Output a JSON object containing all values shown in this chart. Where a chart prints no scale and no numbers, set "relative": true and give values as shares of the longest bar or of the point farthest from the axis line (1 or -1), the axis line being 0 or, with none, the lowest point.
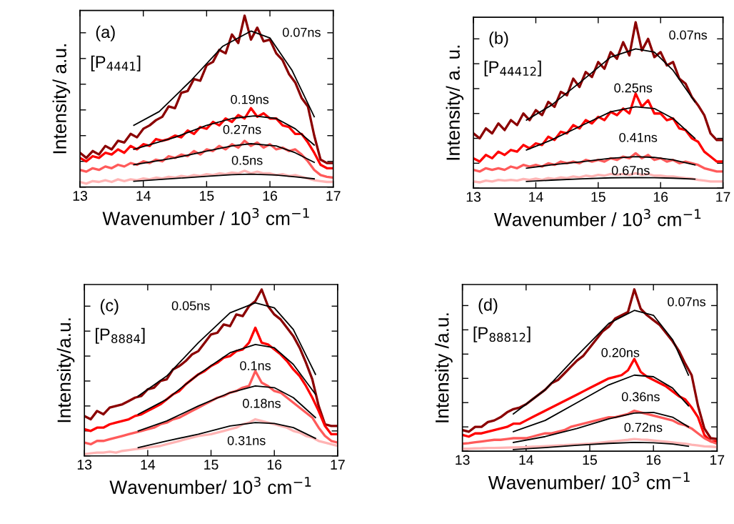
{
  "chart_data": [
    {
      "type": "line",
      "relative": true,
      "tick_labels": "x",
      "xlabel": "Wavenumber / 10$^{3}$ cm$^{−1}$",
      "ylabel": "Intensity/ a.u.",
      "xlim": [
        13,
        17
      ],
      "xticks": [
        13,
        14,
        15,
        16,
        17
      ],
      "x": [
        13.0,
        13.1,
        13.2,
        13.3,
        13.4,
        13.5,
        13.6,
        13.7,
        13.8,
        13.9,
        14.0,
        14.1,
        14.2,
        14.3,
        14.4,
        14.5,
        14.6,
        14.7,
        14.8,
        14.9,
        15.0,
        15.1,
        15.2,
        15.3,
        15.4,
        15.5,
        15.6,
        15.7,
        15.8,
        15.9,
        16.0,
        16.1,
        16.2,
        16.3,
        16.4,
        16.5,
        16.6,
        16.7,
        16.8,
        16.9,
        17.0
      ],
      "series": [
        {
          "color": "#8b0000",
          "values": [
            0.2,
            0.17,
            0.21,
            0.19,
            0.24,
            0.22,
            0.27,
            0.26,
            0.31,
            0.29,
            0.34,
            0.36,
            0.39,
            0.41,
            0.47,
            0.46,
            0.55,
            0.56,
            0.63,
            0.62,
            0.71,
            0.73,
            0.8,
            0.78,
            0.89,
            0.84,
            1.0,
            0.86,
            0.93,
            0.85,
            0.86,
            0.78,
            0.74,
            0.66,
            0.61,
            0.52,
            0.47,
            0.3,
            0.16,
            0.14,
            0.14
          ]
        },
        {
          "color": "#ff0000",
          "values": [
            0.17,
            0.15,
            0.18,
            0.17,
            0.2,
            0.19,
            0.22,
            0.2,
            0.24,
            0.22,
            0.25,
            0.24,
            0.28,
            0.27,
            0.28,
            0.3,
            0.29,
            0.33,
            0.31,
            0.35,
            0.34,
            0.38,
            0.36,
            0.4,
            0.38,
            0.42,
            0.4,
            0.46,
            0.41,
            0.43,
            0.4,
            0.4,
            0.36,
            0.35,
            0.31,
            0.31,
            0.26,
            0.2,
            0.13,
            0.11,
            0.11
          ]
        },
        {
          "color": "#ff5a5a",
          "values": [
            0.1,
            0.09,
            0.11,
            0.1,
            0.12,
            0.11,
            0.13,
            0.12,
            0.14,
            0.13,
            0.15,
            0.14,
            0.16,
            0.15,
            0.18,
            0.17,
            0.19,
            0.18,
            0.21,
            0.19,
            0.22,
            0.21,
            0.24,
            0.22,
            0.25,
            0.23,
            0.27,
            0.24,
            0.26,
            0.23,
            0.25,
            0.22,
            0.23,
            0.21,
            0.22,
            0.19,
            0.15,
            0.1,
            0.07,
            0.06,
            0.055
          ]
        },
        {
          "color": "#ffb4b4",
          "values": [
            0.03,
            0.02,
            0.035,
            0.03,
            0.04,
            0.03,
            0.045,
            0.035,
            0.045,
            0.04,
            0.05,
            0.045,
            0.055,
            0.05,
            0.06,
            0.055,
            0.065,
            0.06,
            0.07,
            0.065,
            0.075,
            0.07,
            0.08,
            0.075,
            0.085,
            0.08,
            0.095,
            0.08,
            0.09,
            0.08,
            0.08,
            0.07,
            0.075,
            0.065,
            0.07,
            0.06,
            0.05,
            0.04,
            0.035,
            0.03,
            0.03
          ]
        },
        {
          "color": "#000000",
          "x": [
            13.85,
            14.25,
            14.75,
            15.25,
            15.7,
            16.0,
            16.35,
            16.7
          ],
          "values": [
            0.36,
            0.44,
            0.62,
            0.82,
            0.91,
            0.87,
            0.68,
            0.41
          ]
        },
        {
          "color": "#000000",
          "x": [
            13.85,
            14.5,
            15.0,
            15.4,
            15.75,
            16.1,
            16.4,
            16.7
          ],
          "values": [
            0.22,
            0.29,
            0.36,
            0.4,
            0.415,
            0.4,
            0.34,
            0.245
          ]
        },
        {
          "color": "#000000",
          "x": [
            13.85,
            14.5,
            15.0,
            15.4,
            15.7,
            16.1,
            16.4,
            16.7
          ],
          "values": [
            0.13,
            0.17,
            0.21,
            0.24,
            0.253,
            0.24,
            0.2,
            0.144
          ]
        },
        {
          "color": "#000000",
          "x": [
            13.85,
            14.5,
            15.0,
            15.4,
            15.7,
            16.1,
            16.4,
            16.7
          ],
          "values": [
            0.034,
            0.05,
            0.063,
            0.072,
            0.075,
            0.07,
            0.06,
            0.048
          ]
        }
      ],
      "annotations": [
        "(a)",
        "[P$_{4441}$]",
        "0.07ns",
        "0.19ns",
        "0.27ns",
        "0.5ns"
      ]
    },
    {
      "type": "line",
      "relative": true,
      "tick_labels": "x",
      "xlabel": "Wavenumber / 10$^{3}$ cm$^{−1}$",
      "ylabel": "Intensity/ a. u.",
      "xlim": [
        13,
        17
      ],
      "xticks": [
        13,
        14,
        15,
        16,
        17
      ],
      "x": [
        13.0,
        13.1,
        13.2,
        13.3,
        13.4,
        13.5,
        13.6,
        13.7,
        13.8,
        13.9,
        14.0,
        14.1,
        14.2,
        14.3,
        14.4,
        14.5,
        14.6,
        14.7,
        14.8,
        14.9,
        15.0,
        15.1,
        15.2,
        15.3,
        15.4,
        15.5,
        15.6,
        15.7,
        15.8,
        15.9,
        16.0,
        16.1,
        16.2,
        16.3,
        16.4,
        16.5,
        16.6,
        16.7,
        16.8,
        16.9,
        17.0
      ],
      "series": [
        {
          "color": "#8b0000",
          "values": [
            0.33,
            0.3,
            0.36,
            0.33,
            0.39,
            0.35,
            0.41,
            0.38,
            0.45,
            0.41,
            0.47,
            0.44,
            0.52,
            0.49,
            0.58,
            0.56,
            0.66,
            0.61,
            0.7,
            0.67,
            0.76,
            0.72,
            0.82,
            0.78,
            0.88,
            0.8,
            1.0,
            0.83,
            0.9,
            0.79,
            0.82,
            0.74,
            0.76,
            0.66,
            0.63,
            0.55,
            0.5,
            0.44,
            0.33,
            0.29,
            0.29
          ]
        },
        {
          "color": "#ff0000",
          "values": [
            0.18,
            0.16,
            0.2,
            0.18,
            0.22,
            0.2,
            0.23,
            0.22,
            0.26,
            0.24,
            0.27,
            0.26,
            0.31,
            0.29,
            0.34,
            0.33,
            0.38,
            0.36,
            0.41,
            0.39,
            0.43,
            0.41,
            0.46,
            0.44,
            0.48,
            0.45,
            0.57,
            0.49,
            0.53,
            0.45,
            0.45,
            0.41,
            0.42,
            0.36,
            0.35,
            0.3,
            0.28,
            0.22,
            0.19,
            0.16,
            0.16
          ]
        },
        {
          "color": "#ff5a5a",
          "values": [
            0.11,
            0.1,
            0.12,
            0.11,
            0.12,
            0.11,
            0.13,
            0.12,
            0.14,
            0.13,
            0.14,
            0.13,
            0.15,
            0.14,
            0.16,
            0.15,
            0.16,
            0.15,
            0.17,
            0.16,
            0.17,
            0.16,
            0.18,
            0.17,
            0.19,
            0.18,
            0.21,
            0.18,
            0.2,
            0.17,
            0.18,
            0.16,
            0.17,
            0.15,
            0.16,
            0.15,
            0.14,
            0.12,
            0.11,
            0.1,
            0.1
          ]
        },
        {
          "color": "#ffb4b4",
          "values": [
            0.04,
            0.035,
            0.045,
            0.04,
            0.05,
            0.045,
            0.05,
            0.045,
            0.055,
            0.05,
            0.057,
            0.05,
            0.06,
            0.055,
            0.065,
            0.06,
            0.07,
            0.065,
            0.075,
            0.07,
            0.08,
            0.075,
            0.085,
            0.08,
            0.085,
            0.08,
            0.09,
            0.08,
            0.085,
            0.075,
            0.075,
            0.07,
            0.07,
            0.065,
            0.06,
            0.057,
            0.05,
            0.045,
            0.04,
            0.04,
            0.04
          ]
        },
        {
          "color": "#000000",
          "x": [
            13.85,
            14.25,
            14.75,
            15.2,
            15.6,
            15.9,
            16.2,
            16.55
          ],
          "values": [
            0.41,
            0.5,
            0.65,
            0.79,
            0.84,
            0.82,
            0.71,
            0.52
          ]
        },
        {
          "color": "#000000",
          "x": [
            13.85,
            14.25,
            14.75,
            15.2,
            15.6,
            15.9,
            16.2,
            16.55
          ],
          "values": [
            0.23,
            0.29,
            0.38,
            0.46,
            0.49,
            0.48,
            0.42,
            0.3
          ]
        },
        {
          "color": "#000000",
          "x": [
            13.85,
            14.25,
            14.75,
            15.2,
            15.6,
            15.9,
            16.2,
            16.55
          ],
          "values": [
            0.12,
            0.14,
            0.16,
            0.18,
            0.19,
            0.185,
            0.17,
            0.14
          ]
        },
        {
          "color": "#000000",
          "x": [
            13.85,
            14.25,
            14.75,
            15.2,
            15.6,
            15.9,
            16.2,
            16.55
          ],
          "values": [
            0.04,
            0.048,
            0.056,
            0.062,
            0.064,
            0.063,
            0.06,
            0.054
          ]
        }
      ],
      "annotations": [
        "(b)",
        "[P$_{44412}$]",
        "0.07ns",
        "0.25ns",
        "0.41ns",
        "0.67ns"
      ]
    },
    {
      "type": "line",
      "relative": true,
      "tick_labels": "x",
      "xlabel": "Wavenumber/ 10$^{3}$ cm$^{−1}$",
      "ylabel": "Intensity/a.u.",
      "xlim": [
        13,
        17
      ],
      "xticks": [
        13,
        14,
        15,
        16,
        17
      ],
      "x": [
        13.0,
        13.1,
        13.2,
        13.3,
        13.4,
        13.5,
        13.6,
        13.7,
        13.8,
        13.9,
        14.0,
        14.1,
        14.2,
        14.3,
        14.4,
        14.5,
        14.6,
        14.7,
        14.8,
        14.9,
        15.0,
        15.1,
        15.2,
        15.3,
        15.4,
        15.5,
        15.6,
        15.7,
        15.8,
        15.9,
        16.0,
        16.1,
        16.2,
        16.3,
        16.4,
        16.5,
        16.6,
        16.7,
        16.8,
        16.9,
        17.0
      ],
      "series": [
        {
          "color": "#8b0000",
          "values": [
            0.24,
            0.22,
            0.27,
            0.25,
            0.29,
            0.3,
            0.31,
            0.33,
            0.35,
            0.36,
            0.4,
            0.41,
            0.45,
            0.46,
            0.52,
            0.54,
            0.57,
            0.61,
            0.63,
            0.68,
            0.73,
            0.74,
            0.79,
            0.78,
            0.85,
            0.84,
            0.9,
            0.93,
            1.0,
            0.9,
            0.85,
            0.82,
            0.77,
            0.72,
            0.65,
            0.56,
            0.46,
            0.3,
            0.19,
            0.18,
            0.18
          ]
        },
        {
          "color": "#ff0000",
          "values": [
            0.16,
            0.15,
            0.17,
            0.17,
            0.19,
            0.2,
            0.21,
            0.22,
            0.24,
            0.25,
            0.27,
            0.29,
            0.31,
            0.34,
            0.37,
            0.39,
            0.43,
            0.46,
            0.49,
            0.51,
            0.54,
            0.56,
            0.59,
            0.6,
            0.63,
            0.64,
            0.68,
            0.77,
            0.68,
            0.67,
            0.64,
            0.61,
            0.57,
            0.52,
            0.48,
            0.42,
            0.35,
            0.27,
            0.18,
            0.13,
            0.13
          ]
        },
        {
          "color": "#ff5a5a",
          "values": [
            0.08,
            0.07,
            0.09,
            0.09,
            0.1,
            0.11,
            0.12,
            0.13,
            0.14,
            0.15,
            0.16,
            0.17,
            0.19,
            0.2,
            0.22,
            0.23,
            0.25,
            0.27,
            0.29,
            0.31,
            0.33,
            0.35,
            0.36,
            0.38,
            0.39,
            0.41,
            0.42,
            0.51,
            0.44,
            0.42,
            0.39,
            0.38,
            0.35,
            0.32,
            0.29,
            0.26,
            0.23,
            0.17,
            0.12,
            0.09,
            0.08
          ]
        },
        {
          "color": "#ffb4b4",
          "values": [
            0.01,
            0.015,
            0.02,
            0.02,
            0.025,
            0.02,
            0.03,
            0.035,
            0.04,
            0.045,
            0.05,
            0.055,
            0.06,
            0.07,
            0.08,
            0.09,
            0.1,
            0.11,
            0.12,
            0.125,
            0.13,
            0.14,
            0.15,
            0.16,
            0.17,
            0.19,
            0.2,
            0.22,
            0.21,
            0.2,
            0.19,
            0.18,
            0.17,
            0.15,
            0.14,
            0.12,
            0.11,
            0.09,
            0.08,
            0.07,
            0.06
          ]
        },
        {
          "color": "#000000",
          "x": [
            13.85,
            14.3,
            14.8,
            15.3,
            15.7,
            16.0,
            16.3,
            16.65
          ],
          "values": [
            0.36,
            0.48,
            0.68,
            0.86,
            0.92,
            0.89,
            0.76,
            0.49
          ]
        },
        {
          "color": "#000000",
          "x": [
            13.85,
            14.3,
            14.8,
            15.3,
            15.7,
            16.0,
            16.3,
            16.65
          ],
          "values": [
            0.25,
            0.34,
            0.49,
            0.62,
            0.67,
            0.65,
            0.55,
            0.37
          ]
        },
        {
          "color": "#000000",
          "x": [
            13.85,
            14.3,
            14.8,
            15.3,
            15.7,
            16.0,
            16.3,
            16.65
          ],
          "values": [
            0.15,
            0.21,
            0.3,
            0.38,
            0.42,
            0.41,
            0.35,
            0.23
          ]
        },
        {
          "color": "#000000",
          "x": [
            13.85,
            14.3,
            14.8,
            15.3,
            15.7,
            16.0,
            16.3,
            16.65
          ],
          "values": [
            0.05,
            0.09,
            0.13,
            0.18,
            0.2,
            0.195,
            0.17,
            0.105
          ]
        }
      ],
      "annotations": [
        "(c)",
        "[P$_{8884}$]",
        "0.05ns",
        "0.1ns",
        "0.18ns",
        "0.31ns"
      ]
    },
    {
      "type": "line",
      "relative": true,
      "tick_labels": "x",
      "xlabel": "Wavenumber/ 10$^{3}$ cm$^{−1}$",
      "ylabel": "Intensity /a.u.",
      "xlim": [
        13,
        17
      ],
      "xticks": [
        13,
        14,
        15,
        16,
        17
      ],
      "x": [
        13.0,
        13.1,
        13.2,
        13.3,
        13.4,
        13.5,
        13.6,
        13.7,
        13.8,
        13.9,
        14.0,
        14.1,
        14.2,
        14.3,
        14.4,
        14.5,
        14.6,
        14.7,
        14.8,
        14.9,
        15.0,
        15.1,
        15.2,
        15.3,
        15.4,
        15.5,
        15.6,
        15.7,
        15.8,
        15.9,
        16.0,
        16.1,
        16.2,
        16.3,
        16.4,
        16.5,
        16.6,
        16.7,
        16.8,
        16.9,
        17.0
      ],
      "series": [
        {
          "color": "#8b0000",
          "values": [
            0.13,
            0.12,
            0.15,
            0.15,
            0.18,
            0.19,
            0.21,
            0.24,
            0.26,
            0.27,
            0.29,
            0.32,
            0.35,
            0.38,
            0.42,
            0.44,
            0.48,
            0.52,
            0.56,
            0.59,
            0.64,
            0.69,
            0.74,
            0.77,
            0.82,
            0.84,
            0.86,
            1.0,
            0.88,
            0.84,
            0.81,
            0.78,
            0.73,
            0.68,
            0.62,
            0.54,
            0.47,
            0.28,
            0.14,
            0.08,
            0.075
          ]
        },
        {
          "color": "#ff0000",
          "values": [
            0.1,
            0.09,
            0.11,
            0.11,
            0.12,
            0.13,
            0.14,
            0.15,
            0.17,
            0.17,
            0.19,
            0.21,
            0.23,
            0.25,
            0.27,
            0.29,
            0.31,
            0.33,
            0.35,
            0.37,
            0.39,
            0.41,
            0.43,
            0.45,
            0.46,
            0.47,
            0.5,
            0.57,
            0.49,
            0.46,
            0.44,
            0.42,
            0.4,
            0.37,
            0.34,
            0.32,
            0.27,
            0.21,
            0.1,
            0.06,
            0.06
          ]
        },
        {
          "color": "#ff5a5a",
          "values": [
            0.046,
            0.05,
            0.055,
            0.06,
            0.065,
            0.07,
            0.07,
            0.075,
            0.08,
            0.08,
            0.08,
            0.09,
            0.1,
            0.11,
            0.11,
            0.12,
            0.13,
            0.15,
            0.16,
            0.17,
            0.18,
            0.19,
            0.2,
            0.21,
            0.21,
            0.22,
            0.23,
            0.25,
            0.24,
            0.23,
            0.22,
            0.21,
            0.2,
            0.19,
            0.17,
            0.16,
            0.14,
            0.11,
            0.08,
            0.06,
            0.046
          ]
        },
        {
          "color": "#ffb4b4",
          "values": [
            0.015,
            0.015,
            0.017,
            0.018,
            0.02,
            0.02,
            0.021,
            0.022,
            0.023,
            0.024,
            0.025,
            0.027,
            0.029,
            0.031,
            0.033,
            0.035,
            0.037,
            0.04,
            0.042,
            0.044,
            0.046,
            0.05,
            0.054,
            0.058,
            0.062,
            0.066,
            0.07,
            0.075,
            0.072,
            0.07,
            0.066,
            0.062,
            0.058,
            0.054,
            0.05,
            0.046,
            0.04,
            0.035,
            0.03,
            0.028,
            0.025
          ]
        },
        {
          "color": "#000000",
          "x": [
            13.8,
            14.3,
            14.8,
            15.3,
            15.7,
            16.0,
            16.3,
            16.55
          ],
          "values": [
            0.23,
            0.38,
            0.59,
            0.79,
            0.87,
            0.84,
            0.69,
            0.47
          ]
        },
        {
          "color": "#000000",
          "x": [
            13.8,
            14.3,
            14.8,
            15.3,
            15.7,
            16.0,
            16.3,
            16.55
          ],
          "values": [
            0.12,
            0.19,
            0.3,
            0.41,
            0.47,
            0.46,
            0.39,
            0.28
          ]
        },
        {
          "color": "#000000",
          "x": [
            13.8,
            14.3,
            14.8,
            15.3,
            15.7,
            16.0,
            16.3,
            16.55
          ],
          "values": [
            0.054,
            0.09,
            0.14,
            0.2,
            0.235,
            0.24,
            0.21,
            0.15
          ]
        },
        {
          "color": "#000000",
          "x": [
            13.8,
            14.3,
            14.8,
            15.3,
            15.7,
            16.0,
            16.3,
            16.55
          ],
          "values": [
            0.01,
            0.022,
            0.036,
            0.048,
            0.054,
            0.052,
            0.044,
            0.03
          ]
        }
      ],
      "annotations": [
        "(d)",
        "[P$_{88812}$]",
        "0.07ns",
        "0.20ns",
        "0.36ns",
        "0.72ns"
      ]
    }
  ]
}
